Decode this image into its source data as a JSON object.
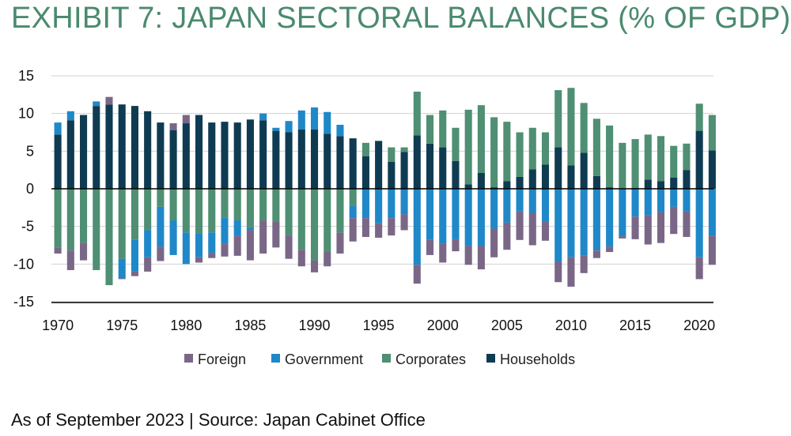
{
  "title": "EXHIBIT 7: JAPAN SECTORAL BALANCES (% OF GDP)",
  "source": "As of September 2023 | Source: Japan Cabinet Office",
  "colors": {
    "Foreign": "#7a6787",
    "Government": "#1f88c8",
    "Corporates": "#4f8f73",
    "Households": "#0f3b52",
    "axis": "#000000",
    "grid": "#d3d3d3"
  },
  "chart_data": {
    "type": "bar",
    "stacked": true,
    "x": [
      1970,
      1971,
      1972,
      1973,
      1974,
      1975,
      1976,
      1977,
      1978,
      1979,
      1980,
      1981,
      1982,
      1983,
      1984,
      1985,
      1986,
      1987,
      1988,
      1989,
      1990,
      1991,
      1992,
      1993,
      1994,
      1995,
      1996,
      1997,
      1998,
      1999,
      2000,
      2001,
      2002,
      2003,
      2004,
      2005,
      2006,
      2007,
      2008,
      2009,
      2010,
      2011,
      2012,
      2013,
      2014,
      2015,
      2016,
      2017,
      2018,
      2019,
      2020,
      2021
    ],
    "xticks": [
      1970,
      1975,
      1980,
      1985,
      1990,
      1995,
      2000,
      2005,
      2010,
      2015,
      2020
    ],
    "ylim": [
      -15,
      15
    ],
    "yticks": [
      15,
      10,
      5,
      0,
      -5,
      -10,
      -15
    ],
    "grid": true,
    "legend_position": "bottom",
    "series": [
      {
        "name": "Households",
        "values": [
          7.2,
          9.1,
          9.8,
          11.0,
          11.2,
          11.2,
          11.0,
          10.3,
          8.8,
          7.8,
          8.7,
          9.8,
          8.8,
          8.9,
          8.8,
          9.2,
          9.1,
          7.7,
          7.5,
          7.9,
          7.9,
          7.3,
          7.0,
          6.7,
          4.3,
          6.3,
          3.6,
          4.9,
          7.1,
          6.0,
          5.5,
          3.7,
          0.6,
          2.1,
          0.2,
          1.0,
          1.6,
          2.6,
          3.2,
          5.5,
          3.1,
          4.8,
          1.7,
          0.2,
          0,
          0.1,
          1.2,
          1.0,
          1.5,
          2.5,
          7.7,
          5.1
        ]
      },
      {
        "name": "Corporates",
        "values": [
          -7.8,
          -8.2,
          -7.2,
          -10.8,
          -12.8,
          -9.3,
          -6.8,
          -5.5,
          -2.4,
          -4.2,
          -5.8,
          -5.9,
          -5.8,
          -3.8,
          -4.2,
          -5.1,
          -4.2,
          -4.4,
          -6.2,
          -8.1,
          -9.5,
          -8.3,
          -5.8,
          -2.3,
          1.8,
          0.1,
          1.9,
          0.6,
          5.8,
          3.8,
          4.9,
          4.4,
          9.9,
          9.0,
          9.3,
          7.9,
          5.9,
          5.5,
          4.3,
          7.6,
          10.3,
          6.6,
          7.6,
          8.2,
          6.1,
          6.5,
          6.0,
          6.0,
          4.2,
          3.5,
          3.6,
          4.7
        ]
      },
      {
        "name": "Government",
        "values": [
          1.6,
          1.2,
          0,
          0.6,
          0,
          -2.6,
          -4.2,
          -3.6,
          -5.3,
          -4.6,
          -4.2,
          -3.2,
          -2.7,
          -3.5,
          -2.0,
          -0.4,
          0.9,
          0.4,
          1.5,
          2.5,
          2.9,
          2.9,
          1.5,
          -1.6,
          -3.9,
          -4.6,
          -3.9,
          -3.4,
          -10.1,
          -6.8,
          -7.3,
          -6.7,
          -7.6,
          -7.6,
          -5.3,
          -4.5,
          -3.0,
          -3.2,
          -4.4,
          -9.7,
          -9.1,
          -8.9,
          -8.2,
          -7.7,
          -6.3,
          -3.7,
          -3.5,
          -3.1,
          -2.4,
          -3.0,
          -9.1,
          -6.2
        ]
      },
      {
        "name": "Foreign",
        "values": [
          -0.8,
          -2.6,
          -2.3,
          0,
          1.0,
          -0.1,
          -0.6,
          -1.9,
          -1.9,
          0.9,
          1.1,
          -0.7,
          -0.7,
          -1.7,
          -2.7,
          -4.0,
          -4.4,
          -3.4,
          -3.1,
          -2.2,
          -1.6,
          -2.0,
          -2.8,
          -3.1,
          -2.5,
          -1.9,
          -2.3,
          -2.1,
          -2.5,
          -2.0,
          -2.5,
          -1.6,
          -2.5,
          -3.1,
          -3.8,
          -3.6,
          -3.8,
          -4.3,
          -2.5,
          -2.7,
          -3.9,
          -2.3,
          -1.0,
          -0.7,
          -0.3,
          -3.0,
          -3.9,
          -4.1,
          -3.6,
          -3.4,
          -2.9,
          -3.9
        ]
      }
    ],
    "legend_order": [
      "Foreign",
      "Government",
      "Corporates",
      "Households"
    ]
  }
}
